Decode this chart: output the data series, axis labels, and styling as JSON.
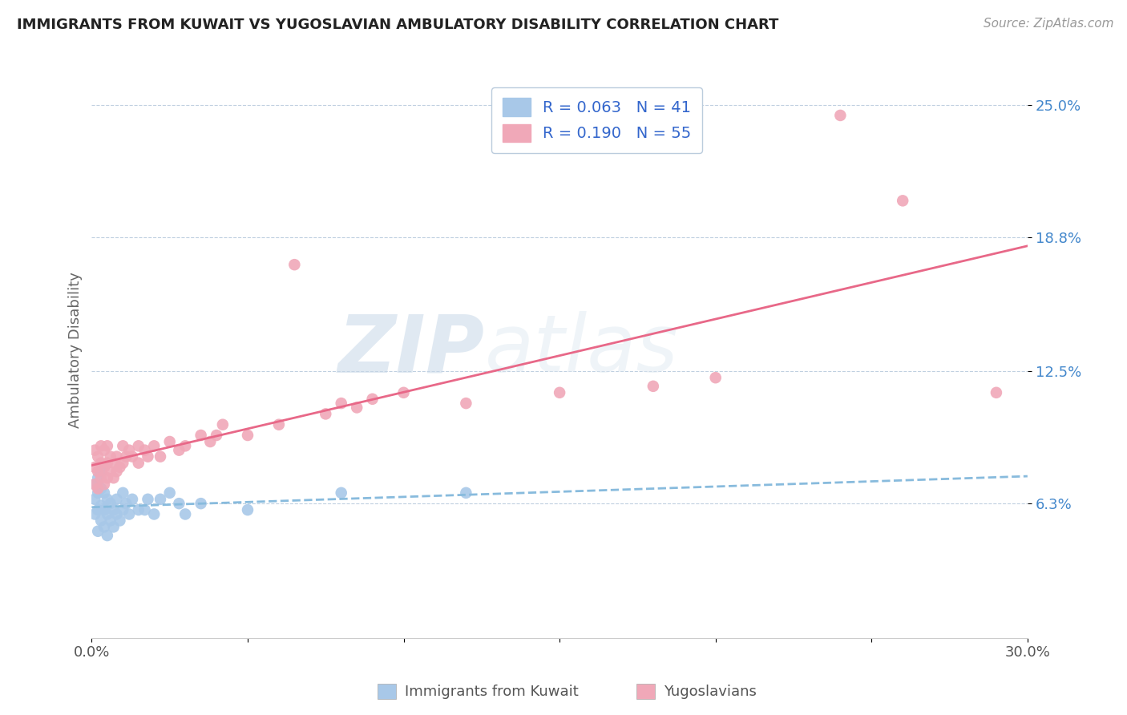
{
  "title": "IMMIGRANTS FROM KUWAIT VS YUGOSLAVIAN AMBULATORY DISABILITY CORRELATION CHART",
  "source": "Source: ZipAtlas.com",
  "xlabel_kuwait": "Immigrants from Kuwait",
  "xlabel_yugoslav": "Yugoslavians",
  "ylabel": "Ambulatory Disability",
  "xlim": [
    0.0,
    0.3
  ],
  "ylim": [
    0.0,
    0.27
  ],
  "ytick_positions": [
    0.063,
    0.125,
    0.188,
    0.25
  ],
  "ytick_labels": [
    "6.3%",
    "12.5%",
    "18.8%",
    "25.0%"
  ],
  "legend_r1": "R = 0.063",
  "legend_n1": "N = 41",
  "legend_r2": "R = 0.190",
  "legend_n2": "N = 55",
  "color_kuwait": "#a8c8e8",
  "color_yugoslav": "#f0a8b8",
  "color_kuwait_line": "#88bbdd",
  "color_yugoslav_line": "#e86888",
  "color_legend_text": "#3366cc",
  "watermark_zip": "ZIP",
  "watermark_atlas": "atlas",
  "background_color": "#ffffff",
  "grid_color": "#c0d0e0",
  "kuwait_x": [
    0.001,
    0.001,
    0.001,
    0.002,
    0.002,
    0.002,
    0.002,
    0.003,
    0.003,
    0.003,
    0.003,
    0.004,
    0.004,
    0.004,
    0.005,
    0.005,
    0.005,
    0.006,
    0.006,
    0.007,
    0.007,
    0.008,
    0.008,
    0.009,
    0.01,
    0.01,
    0.011,
    0.012,
    0.013,
    0.015,
    0.017,
    0.018,
    0.02,
    0.022,
    0.025,
    0.028,
    0.03,
    0.035,
    0.05,
    0.08,
    0.12
  ],
  "kuwait_y": [
    0.058,
    0.065,
    0.072,
    0.05,
    0.06,
    0.068,
    0.075,
    0.055,
    0.062,
    0.07,
    0.078,
    0.052,
    0.06,
    0.068,
    0.048,
    0.058,
    0.065,
    0.055,
    0.063,
    0.052,
    0.06,
    0.058,
    0.065,
    0.055,
    0.06,
    0.068,
    0.063,
    0.058,
    0.065,
    0.06,
    0.06,
    0.065,
    0.058,
    0.065,
    0.068,
    0.063,
    0.058,
    0.063,
    0.06,
    0.068,
    0.068
  ],
  "yugoslav_x": [
    0.001,
    0.001,
    0.001,
    0.002,
    0.002,
    0.002,
    0.003,
    0.003,
    0.003,
    0.004,
    0.004,
    0.004,
    0.005,
    0.005,
    0.005,
    0.006,
    0.006,
    0.007,
    0.007,
    0.008,
    0.008,
    0.009,
    0.01,
    0.01,
    0.011,
    0.012,
    0.013,
    0.015,
    0.015,
    0.017,
    0.018,
    0.02,
    0.022,
    0.025,
    0.028,
    0.03,
    0.035,
    0.038,
    0.04,
    0.042,
    0.05,
    0.06,
    0.065,
    0.075,
    0.08,
    0.085,
    0.09,
    0.1,
    0.12,
    0.15,
    0.18,
    0.2,
    0.24,
    0.26,
    0.29
  ],
  "yugoslav_y": [
    0.072,
    0.08,
    0.088,
    0.07,
    0.078,
    0.085,
    0.075,
    0.082,
    0.09,
    0.072,
    0.08,
    0.088,
    0.075,
    0.082,
    0.09,
    0.078,
    0.085,
    0.075,
    0.082,
    0.078,
    0.085,
    0.08,
    0.082,
    0.09,
    0.085,
    0.088,
    0.085,
    0.082,
    0.09,
    0.088,
    0.085,
    0.09,
    0.085,
    0.092,
    0.088,
    0.09,
    0.095,
    0.092,
    0.095,
    0.1,
    0.095,
    0.1,
    0.175,
    0.105,
    0.11,
    0.108,
    0.112,
    0.115,
    0.11,
    0.115,
    0.118,
    0.122,
    0.245,
    0.205,
    0.115
  ]
}
